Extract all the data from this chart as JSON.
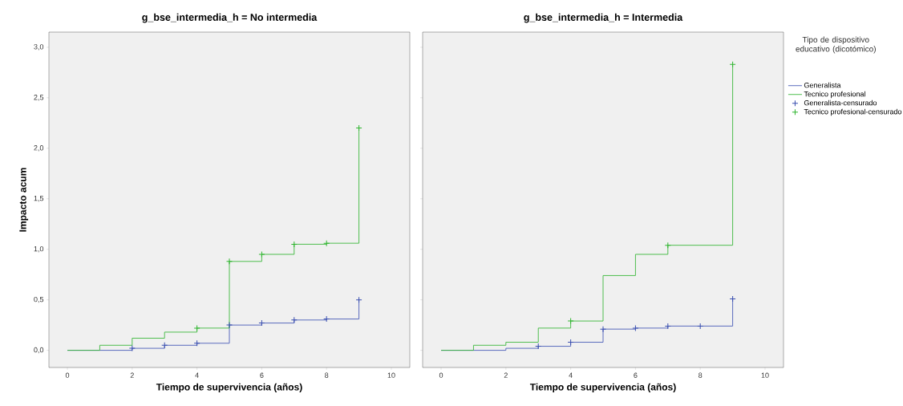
{
  "chart_data": [
    {
      "type": "step",
      "title": "g_bse_intermedia_h = No intermedia",
      "xlabel": "Tiempo de supervivencia (años)",
      "ylabel": "Impacto acum",
      "xlim": [
        -0.57,
        10.57
      ],
      "ylim": [
        -0.17,
        3.15
      ],
      "xticks": [
        0,
        2,
        4,
        6,
        8,
        10
      ],
      "yticks": [
        {
          "value": 0,
          "label": "0,0"
        },
        {
          "value": 0.5,
          "label": "0,5"
        },
        {
          "value": 1,
          "label": "1,0"
        },
        {
          "value": 1.5,
          "label": "1,5"
        },
        {
          "value": 2,
          "label": "2,0"
        },
        {
          "value": 2.5,
          "label": "2,5"
        },
        {
          "value": 3,
          "label": "3,0"
        }
      ],
      "series": [
        {
          "color": "#4a5cb8",
          "x": [
            0,
            1,
            2,
            3,
            4,
            5,
            6,
            7,
            8,
            9
          ],
          "values": [
            0,
            0,
            0.02,
            0.05,
            0.07,
            0.25,
            0.27,
            0.3,
            0.31,
            0.5
          ]
        },
        {
          "color": "#3cb83c",
          "x": [
            0,
            1,
            2,
            3,
            4,
            5,
            6,
            7,
            8,
            9
          ],
          "values": [
            0,
            0.05,
            0.12,
            0.18,
            0.22,
            0.88,
            0.95,
            1.05,
            1.06,
            2.2
          ]
        },
        {
          "type": "scatter",
          "marker": "cross",
          "color": "#3a4fb0",
          "x": [
            2,
            3,
            4,
            5,
            6,
            7,
            8,
            9
          ],
          "values": [
            0.02,
            0.05,
            0.07,
            0.25,
            0.27,
            0.3,
            0.31,
            0.5
          ]
        },
        {
          "type": "scatter",
          "marker": "cross",
          "color": "#2fb52f",
          "x": [
            4,
            5,
            6,
            7,
            8,
            9
          ],
          "values": [
            0.22,
            0.88,
            0.95,
            1.05,
            1.06,
            2.2
          ]
        }
      ]
    },
    {
      "type": "step",
      "title": "g_bse_intermedia_h = Intermedia",
      "xlabel": "Tiempo de supervivencia (años)",
      "tick_labels": "x",
      "legend": "right",
      "legend_title": "Tipo de dispositivo educativo (dicotómico)",
      "xlim": [
        -0.57,
        10.57
      ],
      "ylim": [
        -0.17,
        3.15
      ],
      "xticks": [
        0,
        2,
        4,
        6,
        8,
        10
      ],
      "yticks": [
        {
          "value": 0,
          "label": null
        },
        {
          "value": 0.5,
          "label": null
        },
        {
          "value": 1,
          "label": null
        },
        {
          "value": 1.5,
          "label": null
        },
        {
          "value": 2,
          "label": null
        },
        {
          "value": 2.5,
          "label": null
        },
        {
          "value": 3,
          "label": null
        }
      ],
      "series": [
        {
          "name": "Generalista",
          "color": "#4a5cb8",
          "x": [
            0,
            1,
            2,
            3,
            4,
            5,
            6,
            7,
            8,
            9
          ],
          "values": [
            0,
            0,
            0.02,
            0.04,
            0.08,
            0.21,
            0.22,
            0.24,
            0.24,
            0.51
          ]
        },
        {
          "name": "Tecnico profesional",
          "color": "#3cb83c",
          "x": [
            0,
            1,
            2,
            3,
            4,
            5,
            6,
            7,
            8,
            9
          ],
          "values": [
            0,
            0.05,
            0.08,
            0.22,
            0.29,
            0.74,
            0.95,
            1.04,
            1.04,
            2.83
          ]
        },
        {
          "name": "Generalista-censurado",
          "type": "scatter",
          "marker": "cross",
          "color": "#3a4fb0",
          "x": [
            3,
            4,
            5,
            6,
            7,
            8,
            9
          ],
          "values": [
            0.04,
            0.08,
            0.21,
            0.22,
            0.24,
            0.24,
            0.51
          ]
        },
        {
          "name": "Tecnico profesional-censurado",
          "type": "scatter",
          "marker": "cross",
          "color": "#2fb52f",
          "x": [
            4,
            7,
            9
          ],
          "values": [
            0.29,
            1.04,
            2.83
          ]
        }
      ]
    }
  ]
}
